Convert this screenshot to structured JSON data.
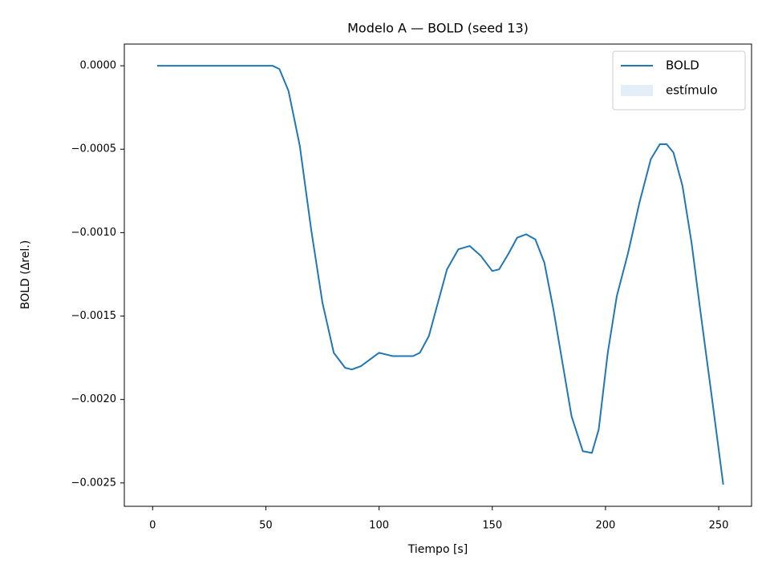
{
  "chart_data": {
    "type": "line",
    "title": "Modelo A — BOLD (seed 13)",
    "x_label": "Tiempo [s]",
    "y_label": "BOLD (Δrel.)",
    "x": [
      2,
      10,
      20,
      30,
      40,
      50,
      53,
      56,
      60,
      65,
      70,
      75,
      80,
      85,
      88,
      92,
      96,
      100,
      103,
      106,
      110,
      115,
      118,
      122,
      126,
      130,
      135,
      140,
      145,
      150,
      153,
      157,
      161,
      165,
      169,
      173,
      177,
      181,
      185,
      190,
      194,
      197,
      201,
      205,
      210,
      215,
      220,
      224,
      227,
      230,
      234,
      238,
      242,
      247,
      252
    ],
    "series": [
      {
        "name": "BOLD",
        "color": "#1f77b4",
        "values": [
          0,
          0,
          0,
          0,
          0,
          0,
          0,
          -2e-05,
          -0.00015,
          -0.00048,
          -0.00098,
          -0.00142,
          -0.00172,
          -0.00181,
          -0.00182,
          -0.0018,
          -0.00176,
          -0.00172,
          -0.00173,
          -0.00174,
          -0.00174,
          -0.00174,
          -0.00172,
          -0.00162,
          -0.00142,
          -0.00122,
          -0.0011,
          -0.00108,
          -0.00114,
          -0.00123,
          -0.00122,
          -0.00113,
          -0.00103,
          -0.00101,
          -0.00104,
          -0.00118,
          -0.00146,
          -0.00178,
          -0.0021,
          -0.00231,
          -0.00232,
          -0.00218,
          -0.00172,
          -0.00138,
          -0.00112,
          -0.00082,
          -0.00056,
          -0.00047,
          -0.00047,
          -0.00052,
          -0.00072,
          -0.00106,
          -0.00148,
          -0.00199,
          -0.00251
        ]
      },
      {
        "name": "estímulo",
        "color": "#1f77b4",
        "kind": "span",
        "opacity": 0.12
      }
    ],
    "xlim": [
      -12.5,
      264.5
    ],
    "ylim": [
      0.00013,
      -0.00264
    ],
    "xticks": [
      0,
      50,
      100,
      150,
      200,
      250
    ],
    "yticks": [
      {
        "value": 0,
        "label": "0.0000"
      },
      {
        "value": -0.0005,
        "label": "−0.0005"
      },
      {
        "value": -0.001,
        "label": "−0.0010"
      },
      {
        "value": -0.0015,
        "label": "−0.0015"
      },
      {
        "value": -0.002,
        "label": "−0.0020"
      },
      {
        "value": -0.0025,
        "label": "−0.0025"
      }
    ],
    "legend": "upper right"
  }
}
